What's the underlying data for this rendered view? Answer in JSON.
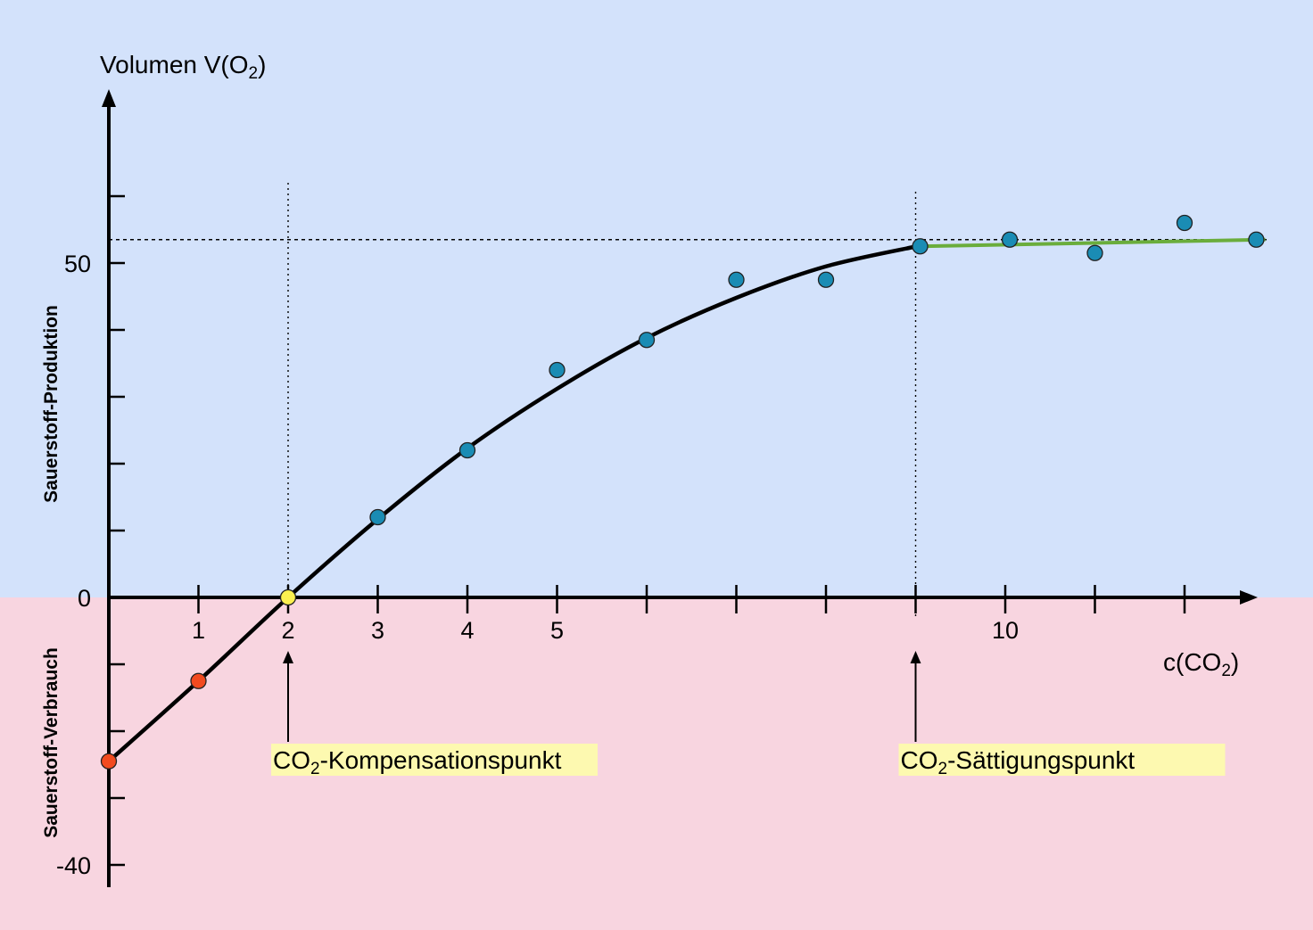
{
  "colors": {
    "production_bg": "#d3e2fb",
    "consumption_bg": "#f8d5e0",
    "curve": "#000000",
    "saturation_line": "#6aad3c",
    "point_measured": "#1a8cb4",
    "point_negative": "#f24a1f",
    "point_compensation": "#fbf04f",
    "annotation_bg": "#fdf9b0"
  },
  "chart_data": {
    "type": "scatter",
    "ylabel": {
      "main": "Volumen V(O",
      "sub": "2",
      "tail": ")"
    },
    "xlabel": {
      "main": "c(CO",
      "sub": "2",
      "tail": ")"
    },
    "side_label_production": "Sauerstoff-Produktion",
    "side_label_consumption": "Sauerstoff-Verbrauch",
    "xlim": [
      0,
      13
    ],
    "ylim": [
      -42,
      66
    ],
    "x_ticks": [
      1,
      2,
      3,
      4,
      5,
      6,
      7,
      8,
      9,
      10,
      11,
      12
    ],
    "x_tick_labels": [
      {
        "x": 1,
        "label": "1"
      },
      {
        "x": 2,
        "label": "2"
      },
      {
        "x": 3,
        "label": "3"
      },
      {
        "x": 4,
        "label": "4"
      },
      {
        "x": 5,
        "label": "5"
      },
      {
        "x": 10,
        "label": "10"
      }
    ],
    "y_ticks": [
      -40,
      -30,
      -20,
      -10,
      0,
      10,
      20,
      30,
      40,
      50,
      60
    ],
    "y_tick_labels": [
      {
        "y": 50,
        "label": "50"
      },
      {
        "y": 0,
        "label": "0"
      },
      {
        "y": -40,
        "label": "-40"
      }
    ],
    "negative_points": [
      {
        "x": 0,
        "y": -24.5
      },
      {
        "x": 1,
        "y": -12.5
      }
    ],
    "compensation_point": {
      "x": 2,
      "y": 0
    },
    "measured_points": [
      {
        "x": 3,
        "y": 12
      },
      {
        "x": 4,
        "y": 22
      },
      {
        "x": 5,
        "y": 34
      },
      {
        "x": 6,
        "y": 38.5
      },
      {
        "x": 7,
        "y": 47.5
      },
      {
        "x": 8,
        "y": 47.5
      },
      {
        "x": 9.05,
        "y": 52.5
      },
      {
        "x": 10.05,
        "y": 53.5
      },
      {
        "x": 11,
        "y": 51.5
      },
      {
        "x": 12,
        "y": 56
      },
      {
        "x": 12.8,
        "y": 53.5
      }
    ],
    "fit_curve": [
      [
        0,
        -24.5
      ],
      [
        1,
        -12.5
      ],
      [
        2,
        0
      ],
      [
        3,
        11.7
      ],
      [
        4,
        22.3
      ],
      [
        5,
        31.2
      ],
      [
        6,
        38.8
      ],
      [
        7,
        44.8
      ],
      [
        8,
        49.5
      ],
      [
        9.05,
        52.6
      ]
    ],
    "saturation_line": [
      [
        9.05,
        52.5
      ],
      [
        12.9,
        53.5
      ]
    ],
    "saturation_level": 53.5,
    "compensation_x": 2,
    "saturation_x": 9,
    "annotations": [
      {
        "name": "compensation",
        "text_main": "CO",
        "text_sub": "2",
        "text_tail": "-Kompensationspunkt",
        "x": 2
      },
      {
        "name": "saturation",
        "text_main": "CO",
        "text_sub": "2",
        "text_tail": "-Sättigungspunkt",
        "x": 9
      }
    ]
  }
}
